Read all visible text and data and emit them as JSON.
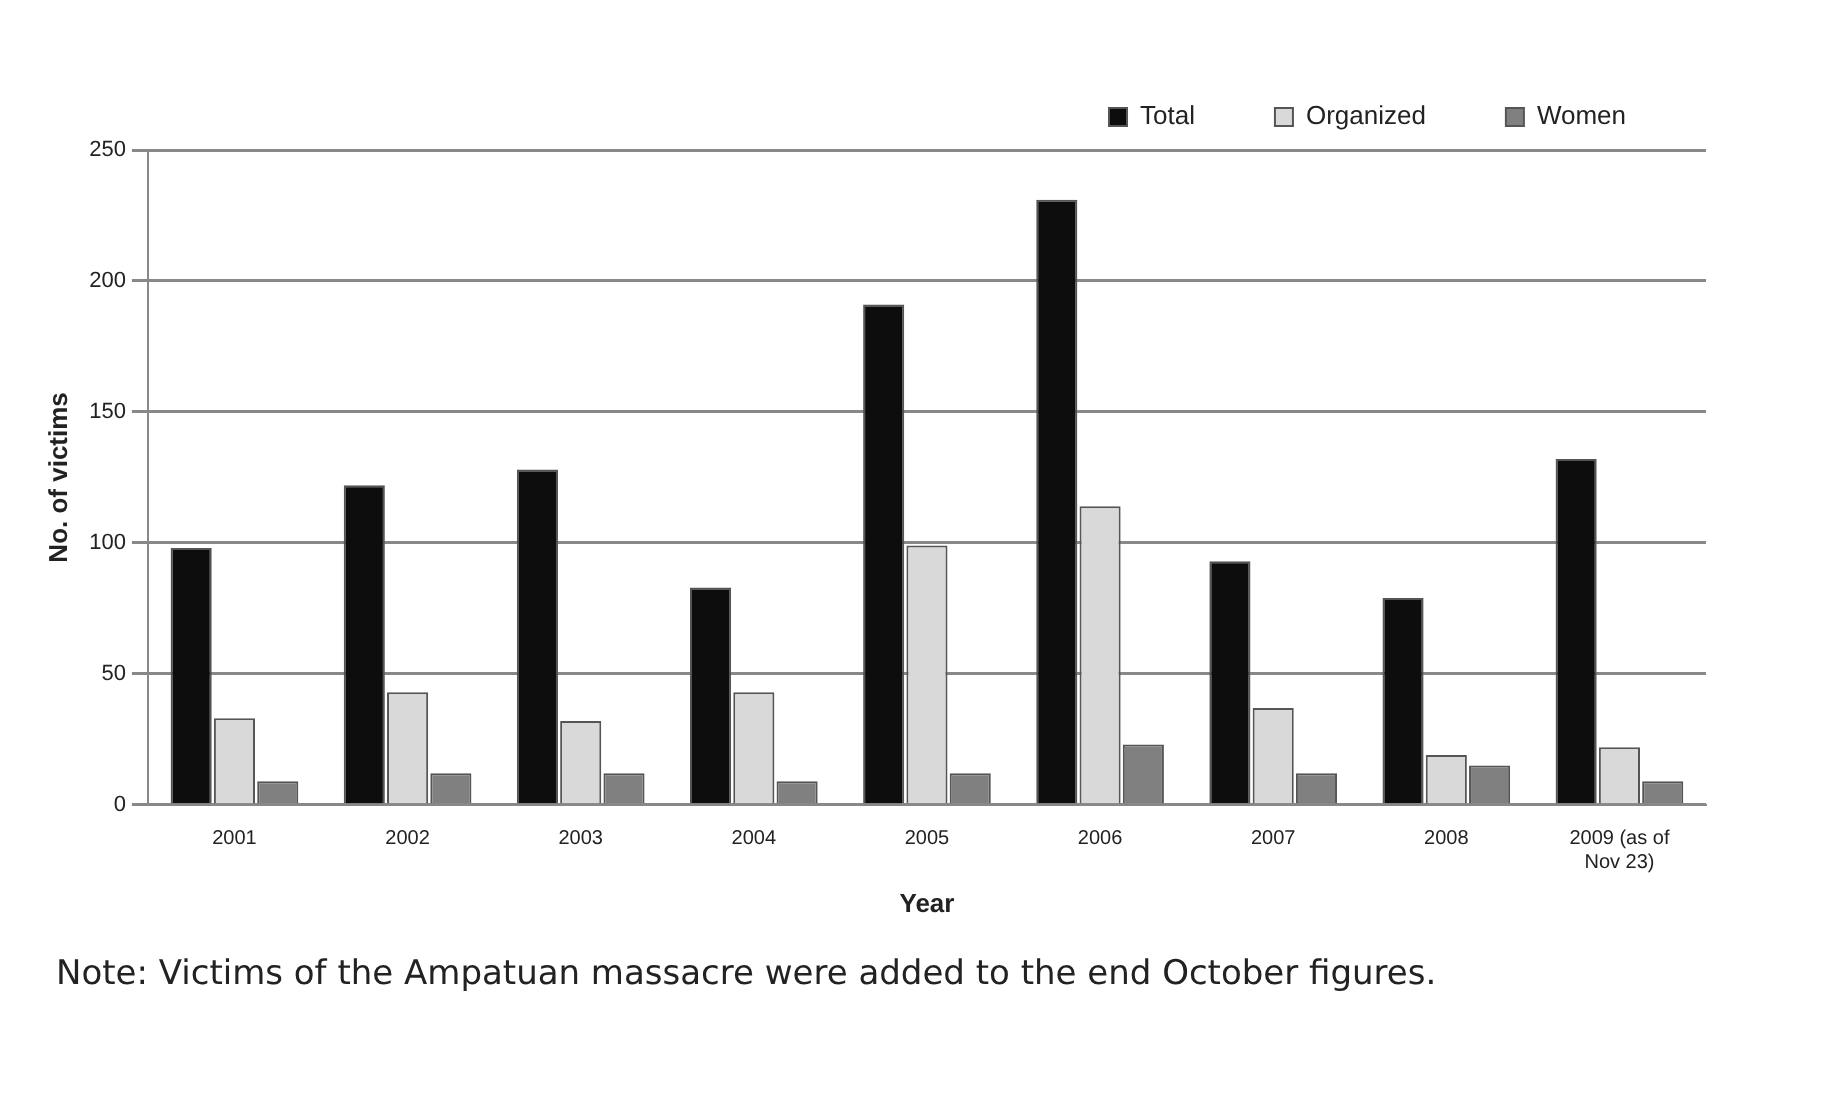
{
  "chart_data": {
    "type": "bar",
    "xlabel": "Year",
    "ylabel": "No. of victims",
    "categories": [
      "2001",
      "2002",
      "2003",
      "2004",
      "2005",
      "2006",
      "2007",
      "2008",
      "2009 (as of Nov 23)"
    ],
    "series": [
      {
        "name": "Total",
        "color": "#0d0d0d",
        "values": [
          98,
          122,
          128,
          83,
          191,
          231,
          93,
          79,
          132
        ]
      },
      {
        "name": "Organized",
        "color": "#d9d9d9",
        "values": [
          33,
          43,
          32,
          43,
          99,
          114,
          37,
          19,
          22
        ]
      },
      {
        "name": "Women",
        "color": "#808080",
        "values": [
          9,
          12,
          12,
          9,
          12,
          23,
          12,
          15,
          9
        ]
      }
    ],
    "ylim": [
      0,
      250
    ],
    "yticks": [
      0,
      50,
      100,
      150,
      200,
      250
    ],
    "grid": "y",
    "legend": "top right",
    "annotations": [
      "Note: Victims of the Ampatuan massacre were added to the end October figures."
    ]
  }
}
